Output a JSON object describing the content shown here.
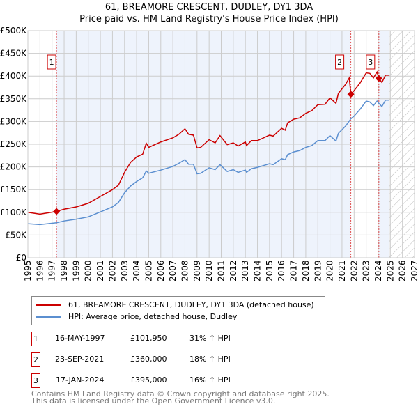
{
  "chart_data": {
    "type": "line",
    "title": "61, BREAMORE CRESCENT, DUDLEY, DY1 3DA",
    "subtitle": "Price paid vs. HM Land Registry's House Price Index (HPI)",
    "xlim": [
      1995,
      2027
    ],
    "ylim": [
      0,
      500000
    ],
    "yticks": [
      "£0",
      "£50K",
      "£100K",
      "£150K",
      "£200K",
      "£250K",
      "£300K",
      "£350K",
      "£400K",
      "£450K",
      "£500K"
    ],
    "xticks": [
      "1995",
      "1996",
      "1997",
      "1998",
      "1999",
      "2000",
      "2001",
      "2002",
      "2003",
      "2004",
      "2005",
      "2006",
      "2007",
      "2008",
      "2009",
      "2010",
      "2011",
      "2012",
      "2013",
      "2014",
      "2015",
      "2016",
      "2017",
      "2018",
      "2019",
      "2020",
      "2021",
      "2022",
      "2023",
      "2024",
      "2025",
      "2026",
      "2027"
    ],
    "grid": true,
    "data_end": 2024.9,
    "series": [
      {
        "name": "61, BREAMORE CRESCENT, DUDLEY, DY1 3DA (detached house)",
        "color": "#cc0000",
        "x": [
          1995,
          1996,
          1997.37,
          1998,
          1999,
          2000,
          2001,
          2002,
          2002.5,
          2003,
          2003.5,
          2004,
          2004.5,
          2004.8,
          2005,
          2006,
          2007,
          2007.5,
          2008,
          2008.3,
          2008.7,
          2009,
          2009.3,
          2010,
          2010.5,
          2010.9,
          2011.5,
          2012,
          2012.4,
          2013,
          2013.1,
          2013.5,
          2014,
          2015,
          2015.3,
          2016,
          2016.3,
          2016.5,
          2017,
          2017.5,
          2018,
          2018.5,
          2019,
          2019.6,
          2020,
          2020.5,
          2020.7,
          2021,
          2021.3,
          2021.6,
          2021.73,
          2022,
          2022.5,
          2023,
          2023.3,
          2023.6,
          2023.9,
          2024.05,
          2024.3,
          2024.6,
          2024.9
        ],
        "y": [
          100,
          96,
          102,
          107,
          112,
          120,
          135,
          150,
          160,
          188,
          210,
          222,
          228,
          252,
          243,
          255,
          264,
          272,
          284,
          272,
          270,
          242,
          243,
          260,
          253,
          269,
          249,
          253,
          246,
          255,
          247,
          258,
          258,
          270,
          268,
          285,
          281,
          297,
          305,
          308,
          318,
          324,
          337,
          338,
          352,
          340,
          362,
          372,
          382,
          396,
          360,
          368,
          385,
          407,
          406,
          396,
          409,
          395,
          386,
          402,
          402
        ]
      },
      {
        "name": "HPI: Average price, detached house, Dudley",
        "color": "#5b8fd0",
        "x": [
          1995,
          1996,
          1997.37,
          1998,
          1999,
          2000,
          2001,
          2002,
          2002.5,
          2003,
          2003.5,
          2004,
          2004.5,
          2004.8,
          2005,
          2006,
          2007,
          2007.5,
          2008,
          2008.3,
          2008.7,
          2009,
          2009.3,
          2010,
          2010.5,
          2010.9,
          2011.5,
          2012,
          2012.4,
          2013,
          2013.1,
          2013.5,
          2014,
          2015,
          2015.3,
          2016,
          2016.3,
          2016.5,
          2017,
          2017.5,
          2018,
          2018.5,
          2019,
          2019.6,
          2020,
          2020.5,
          2020.7,
          2021,
          2021.3,
          2021.73,
          2022,
          2022.5,
          2023,
          2023.3,
          2023.6,
          2023.9,
          2024.05,
          2024.3,
          2024.6,
          2024.9
        ],
        "y": [
          75,
          73,
          77,
          81,
          85,
          90,
          101,
          112,
          122,
          143,
          158,
          168,
          176,
          191,
          186,
          193,
          201,
          208,
          216,
          206,
          206,
          185,
          186,
          198,
          194,
          205,
          190,
          194,
          188,
          193,
          188,
          196,
          199,
          207,
          205,
          218,
          216,
          227,
          233,
          236,
          243,
          247,
          258,
          258,
          269,
          257,
          274,
          282,
          290,
          306,
          312,
          327,
          345,
          343,
          335,
          345,
          340,
          333,
          347,
          347
        ]
      }
    ],
    "y_units": "thousands GBP",
    "sales": [
      {
        "label": "1",
        "date": "16-MAY-1997",
        "x": 1997.37,
        "price": "£101,950",
        "value": 101.95,
        "hpi": "31% ↑ HPI"
      },
      {
        "label": "2",
        "date": "23-SEP-2021",
        "x": 2021.73,
        "price": "£360,000",
        "value": 360,
        "hpi": "18% ↑ HPI"
      },
      {
        "label": "3",
        "date": "17-JAN-2024",
        "x": 2024.05,
        "price": "£395,000",
        "value": 395,
        "hpi": "16% ↑ HPI"
      }
    ]
  },
  "footer": [
    "Contains HM Land Registry data © Crown copyright and database right 2025.",
    "This data is licensed under the Open Government Licence v3.0."
  ]
}
